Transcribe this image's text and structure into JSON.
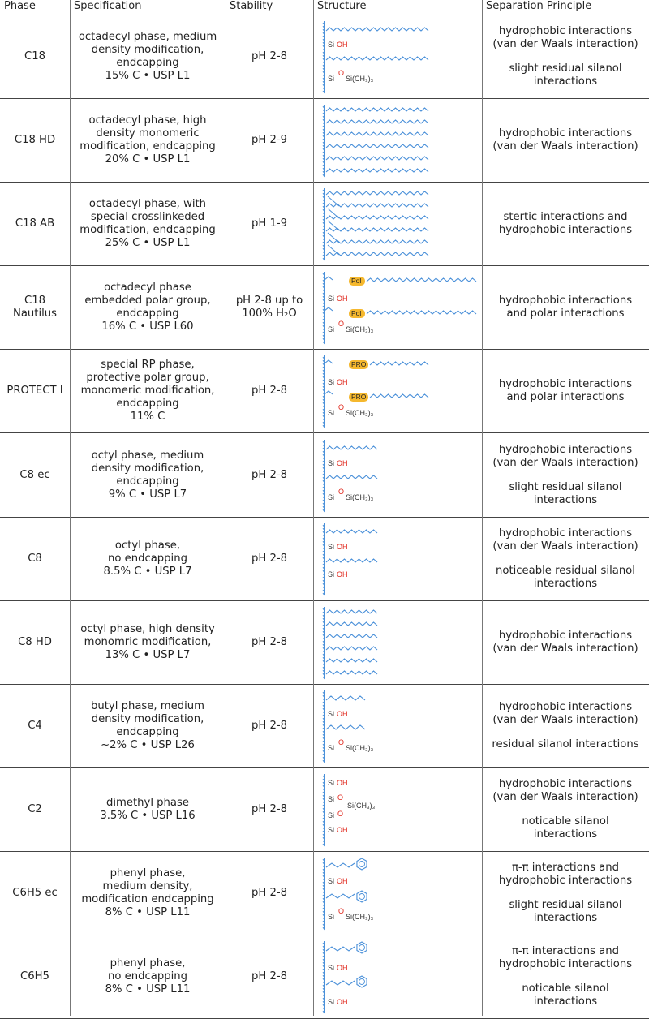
{
  "headers": {
    "phase": "Phase",
    "specification": "Specification",
    "stability": "Stability",
    "structure": "Structure",
    "separation": "Separation Principle"
  },
  "rows": [
    {
      "phase": [
        "C18"
      ],
      "spec": [
        "octadecyl phase, medium",
        "density modification,",
        "endcapping",
        "15% C • USP L1"
      ],
      "stability": [
        "pH 2-8"
      ],
      "sep": [
        [
          "hydrophobic interactions",
          "(van der Waals interaction)"
        ],
        [
          "slight residual silanol",
          "interactions"
        ]
      ],
      "structure": "c18"
    },
    {
      "phase": [
        "C18 HD"
      ],
      "spec": [
        "octadecyl phase, high",
        "density monomeric",
        "modification, endcapping",
        "20% C • USP L1"
      ],
      "stability": [
        "pH 2-9"
      ],
      "sep": [
        [
          "hydrophobic interactions",
          "(van der Waals interaction)"
        ]
      ],
      "structure": "c18hd"
    },
    {
      "phase": [
        "C18 AB"
      ],
      "spec": [
        "octadecyl phase, with",
        "special crosslinkeded",
        "modification, endcapping",
        "25% C • USP L1"
      ],
      "stability": [
        "pH 1-9"
      ],
      "sep": [
        [
          "stertic interactions and",
          "hydrophobic interactions"
        ]
      ],
      "structure": "c18ab"
    },
    {
      "phase": [
        "C18",
        "Nautilus"
      ],
      "spec": [
        "octadecyl phase",
        "embedded polar group,",
        "endcapping",
        "16% C • USP L60"
      ],
      "stability": [
        "pH 2-8 up to",
        "100% H₂O"
      ],
      "sep": [
        [
          "hydrophobic interactions",
          "and polar interactions"
        ]
      ],
      "structure": "nautilus"
    },
    {
      "phase": [
        "PROTECT I"
      ],
      "spec": [
        "special RP phase,",
        "protective polar group,",
        "monomeric modification,",
        "endcapping",
        "11% C"
      ],
      "stability": [
        "pH 2-8"
      ],
      "sep": [
        [
          "hydrophobic interactions",
          "and polar interactions"
        ]
      ],
      "structure": "protect"
    },
    {
      "phase": [
        "C8 ec"
      ],
      "spec": [
        "octyl phase, medium",
        "density modification,",
        "endcapping",
        "9% C • USP L7"
      ],
      "stability": [
        "pH 2-8"
      ],
      "sep": [
        [
          "hydrophobic interactions",
          "(van der Waals interaction)"
        ],
        [
          "slight residual silanol",
          "interactions"
        ]
      ],
      "structure": "c8ec"
    },
    {
      "phase": [
        "C8"
      ],
      "spec": [
        "octyl phase,",
        "no endcapping",
        "8.5% C • USP L7"
      ],
      "stability": [
        "pH 2-8"
      ],
      "sep": [
        [
          "hydrophobic interactions",
          "(van der Waals interaction)"
        ],
        [
          "noticeable residual silanol",
          "interactions"
        ]
      ],
      "structure": "c8"
    },
    {
      "phase": [
        "C8 HD"
      ],
      "spec": [
        "octyl phase, high density",
        "monomric modification,",
        "13% C • USP L7"
      ],
      "stability": [
        "pH 2-8"
      ],
      "sep": [
        [
          "hydrophobic interactions",
          "(van der Waals interaction)"
        ]
      ],
      "structure": "c8hd"
    },
    {
      "phase": [
        "C4"
      ],
      "spec": [
        "butyl phase, medium",
        "density modification,",
        "endcapping",
        "~2% C • USP L26"
      ],
      "stability": [
        "pH 2-8"
      ],
      "sep": [
        [
          "hydrophobic interactions",
          "(van der Waals interaction)"
        ],
        [
          "residual silanol interactions"
        ]
      ],
      "structure": "c4"
    },
    {
      "phase": [
        "C2"
      ],
      "spec": [
        "dimethyl phase",
        "3.5% C • USP L16"
      ],
      "stability": [
        "pH 2-8"
      ],
      "sep": [
        [
          "hydrophobic interactions",
          "(van der Waals interaction)"
        ],
        [
          "noticable silanol",
          "interactions"
        ]
      ],
      "structure": "c2"
    },
    {
      "phase": [
        "C6H5 ec"
      ],
      "spec": [
        "phenyl phase,",
        "medium density,",
        "modification endcapping",
        "8% C • USP L11"
      ],
      "stability": [
        "pH 2-8"
      ],
      "sep": [
        [
          "π-π interactions and",
          "hydrophobic interactions"
        ],
        [
          "slight residual silanol",
          "interactions"
        ]
      ],
      "structure": "c6h5ec"
    },
    {
      "phase": [
        "C6H5"
      ],
      "spec": [
        "phenyl phase,",
        "no endcapping",
        "8% C • USP L11"
      ],
      "stability": [
        "pH 2-8"
      ],
      "sep": [
        [
          "π-π interactions and",
          "hydrophobic interactions"
        ],
        [
          "noticable silanol",
          "interactions"
        ]
      ],
      "structure": "c6h5"
    }
  ],
  "labels": {
    "si_oh": "Si·OH",
    "si": "Si",
    "o": "O",
    "oh": "OH",
    "sich3": "Si(CH₃)₃",
    "pol": "Pol",
    "pro": "PRO"
  },
  "colors": {
    "chain": "#4a90d9",
    "oxygen": "#e0261b",
    "badge": "#f5b82e",
    "rule": "#444444"
  }
}
